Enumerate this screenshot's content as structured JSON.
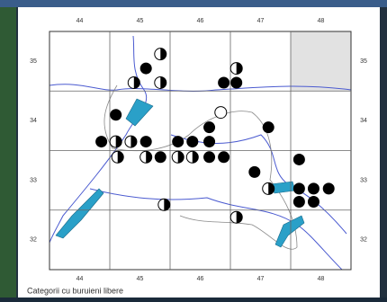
{
  "map": {
    "caption": "Categorii cu buruieni libere",
    "xlim": [
      43.5,
      48.5
    ],
    "ylim": [
      31.5,
      35.5
    ],
    "xticks": [
      44,
      45,
      46,
      47,
      48
    ],
    "yticks": [
      35,
      34,
      33,
      32
    ],
    "points": [
      {
        "x": 45.34,
        "y": 35.12,
        "kind": "half"
      },
      {
        "x": 45.1,
        "y": 34.88,
        "kind": "filled"
      },
      {
        "x": 44.9,
        "y": 34.64,
        "kind": "half"
      },
      {
        "x": 45.34,
        "y": 34.64,
        "kind": "half"
      },
      {
        "x": 46.6,
        "y": 34.88,
        "kind": "half"
      },
      {
        "x": 46.39,
        "y": 34.64,
        "kind": "filled"
      },
      {
        "x": 46.6,
        "y": 34.64,
        "kind": "filled"
      },
      {
        "x": 46.34,
        "y": 34.14,
        "kind": "open"
      },
      {
        "x": 44.6,
        "y": 34.1,
        "kind": "filled"
      },
      {
        "x": 47.13,
        "y": 33.89,
        "kind": "filled"
      },
      {
        "x": 46.15,
        "y": 33.89,
        "kind": "filled"
      },
      {
        "x": 44.36,
        "y": 33.65,
        "kind": "filled"
      },
      {
        "x": 44.6,
        "y": 33.65,
        "kind": "half"
      },
      {
        "x": 44.85,
        "y": 33.65,
        "kind": "half"
      },
      {
        "x": 45.1,
        "y": 33.65,
        "kind": "filled"
      },
      {
        "x": 45.63,
        "y": 33.65,
        "kind": "filled"
      },
      {
        "x": 45.87,
        "y": 33.65,
        "kind": "filled"
      },
      {
        "x": 46.15,
        "y": 33.65,
        "kind": "filled"
      },
      {
        "x": 44.63,
        "y": 33.39,
        "kind": "half"
      },
      {
        "x": 45.1,
        "y": 33.39,
        "kind": "half"
      },
      {
        "x": 45.34,
        "y": 33.39,
        "kind": "filled"
      },
      {
        "x": 45.63,
        "y": 33.39,
        "kind": "half"
      },
      {
        "x": 45.87,
        "y": 33.39,
        "kind": "half"
      },
      {
        "x": 46.15,
        "y": 33.39,
        "kind": "filled"
      },
      {
        "x": 46.39,
        "y": 33.39,
        "kind": "filled"
      },
      {
        "x": 46.9,
        "y": 33.14,
        "kind": "filled"
      },
      {
        "x": 47.64,
        "y": 33.35,
        "kind": "filled"
      },
      {
        "x": 47.13,
        "y": 32.86,
        "kind": "half"
      },
      {
        "x": 47.64,
        "y": 32.86,
        "kind": "filled"
      },
      {
        "x": 47.88,
        "y": 32.86,
        "kind": "filled"
      },
      {
        "x": 48.13,
        "y": 32.86,
        "kind": "filled"
      },
      {
        "x": 47.64,
        "y": 32.64,
        "kind": "filled"
      },
      {
        "x": 47.88,
        "y": 32.64,
        "kind": "filled"
      },
      {
        "x": 45.4,
        "y": 32.59,
        "kind": "half"
      },
      {
        "x": 46.6,
        "y": 32.38,
        "kind": "half"
      }
    ]
  }
}
